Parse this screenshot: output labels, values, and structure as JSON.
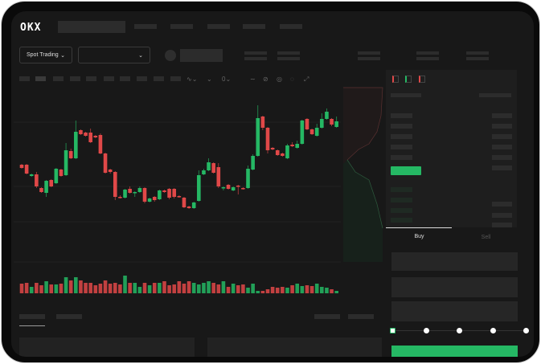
{
  "header": {
    "logo": "OKX"
  },
  "toolbar": {
    "market_select": "Spot Trading",
    "pair_select": "",
    "icons": [
      "indicator-icon",
      "chart-type-icon",
      "time-icon",
      "line-icon",
      "draw-icon",
      "target-icon",
      "settings-icon",
      "fullscreen-icon"
    ]
  },
  "orderbook": {
    "view_icons": [
      "both-sides-icon",
      "bids-only-icon",
      "asks-only-icon"
    ]
  },
  "trade": {
    "tabs": [
      "Buy",
      "Sell"
    ],
    "active_tab": "Buy",
    "slider_percent": 0,
    "slider_steps": 5
  },
  "colors": {
    "up": "#25b864",
    "down": "#e04848",
    "background": "#181818"
  },
  "chart_data": {
    "type": "candlestick",
    "candles_ohlc": [
      [
        97,
        98,
        92,
        93
      ],
      [
        97,
        98,
        85,
        86
      ],
      [
        83,
        86,
        82,
        85
      ],
      [
        85,
        88,
        68,
        70
      ],
      [
        68,
        69,
        62,
        63
      ],
      [
        62,
        78,
        57,
        77
      ],
      [
        78,
        79,
        69,
        70
      ],
      [
        74,
        93,
        73,
        92
      ],
      [
        91,
        92,
        82,
        83
      ],
      [
        84,
        124,
        83,
        115
      ],
      [
        114,
        117,
        104,
        105
      ],
      [
        105,
        152,
        104,
        138
      ],
      [
        140,
        141,
        134,
        135
      ],
      [
        137,
        138,
        132,
        133
      ],
      [
        137,
        142,
        124,
        125
      ],
      [
        133,
        134,
        130,
        131
      ],
      [
        134,
        136,
        110,
        111
      ],
      [
        111,
        112,
        86,
        87
      ],
      [
        91,
        92,
        86,
        88
      ],
      [
        88,
        89,
        53,
        57
      ],
      [
        57,
        59,
        55,
        56
      ],
      [
        56,
        67,
        55,
        66
      ],
      [
        67,
        70,
        61,
        62
      ],
      [
        62,
        64,
        57,
        63
      ],
      [
        63,
        70,
        62,
        68
      ],
      [
        68,
        69,
        49,
        51
      ],
      [
        51,
        56,
        50,
        55
      ],
      [
        57,
        58,
        51,
        53
      ],
      [
        54,
        66,
        53,
        65
      ],
      [
        65,
        66,
        62,
        63
      ],
      [
        67,
        68,
        54,
        56
      ],
      [
        67,
        68,
        55,
        57
      ],
      [
        58,
        59,
        56,
        57
      ],
      [
        56,
        57,
        43,
        44
      ],
      [
        45,
        46,
        42,
        43
      ],
      [
        43,
        51,
        42,
        50
      ],
      [
        52,
        90,
        51,
        84
      ],
      [
        85,
        92,
        84,
        90
      ],
      [
        90,
        105,
        89,
        100
      ],
      [
        99,
        100,
        86,
        87
      ],
      [
        94,
        99,
        68,
        70
      ],
      [
        68,
        70,
        65,
        69
      ],
      [
        72,
        73,
        66,
        67
      ],
      [
        65,
        70,
        64,
        69
      ],
      [
        71,
        72,
        60,
        70
      ],
      [
        68,
        69,
        66,
        67
      ],
      [
        68,
        96,
        67,
        92
      ],
      [
        91,
        110,
        90,
        108
      ],
      [
        108,
        171,
        107,
        155
      ],
      [
        157,
        158,
        140,
        143
      ],
      [
        143,
        144,
        111,
        115
      ],
      [
        118,
        119,
        115,
        116
      ],
      [
        115,
        116,
        108,
        109
      ],
      [
        111,
        112,
        107,
        108
      ],
      [
        105,
        123,
        104,
        121
      ],
      [
        122,
        125,
        119,
        120
      ],
      [
        118,
        127,
        117,
        123
      ],
      [
        123,
        153,
        122,
        152
      ],
      [
        154,
        155,
        140,
        141
      ],
      [
        141,
        142,
        134,
        135
      ],
      [
        133,
        148,
        132,
        143
      ],
      [
        143,
        161,
        142,
        154
      ],
      [
        154,
        167,
        153,
        163
      ],
      [
        154,
        155,
        145,
        147
      ],
      [
        144,
        157,
        143,
        151
      ]
    ],
    "volumes": [
      12,
      13,
      8,
      13,
      10,
      15,
      11,
      11,
      12,
      20,
      16,
      20,
      16,
      13,
      13,
      10,
      12,
      16,
      12,
      13,
      11,
      22,
      13,
      13,
      8,
      13,
      10,
      13,
      13,
      15,
      10,
      11,
      15,
      12,
      15,
      13,
      11,
      13,
      15,
      13,
      11,
      15,
      8,
      12,
      10,
      11,
      7,
      12,
      3,
      3,
      5,
      8,
      7,
      8,
      7,
      10,
      12,
      9,
      10,
      9,
      12,
      8,
      7,
      5,
      3
    ]
  }
}
